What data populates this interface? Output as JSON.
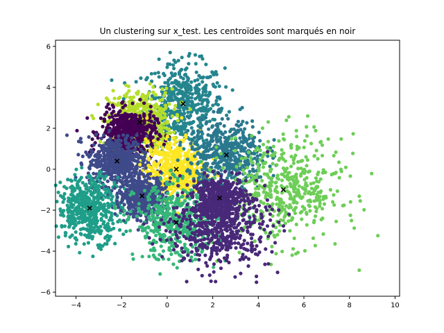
{
  "chart_data": {
    "type": "scatter",
    "title": "Un clustering sur x_test. Les centroïdes sont marqués en noir",
    "xlabel": "",
    "ylabel": "",
    "xlim": [
      -4.9,
      10.2
    ],
    "ylim": [
      -6.2,
      6.3
    ],
    "xticks": [
      -4,
      -2,
      0,
      2,
      4,
      6,
      8,
      10
    ],
    "yticks": [
      -6,
      -4,
      -2,
      0,
      2,
      4,
      6
    ],
    "grid": false,
    "centroid_color": "#000000",
    "clusters": [
      {
        "cx": 0.7,
        "cy": 3.2,
        "sx": 0.9,
        "sy": 1.0,
        "color": "#25858e"
      },
      {
        "cx": -1.2,
        "cy": 2.3,
        "sx": 0.7,
        "sy": 0.8,
        "color": "#b5de2b"
      },
      {
        "cx": -1.7,
        "cy": 1.8,
        "sx": 0.6,
        "sy": 0.55,
        "color": "#440154"
      },
      {
        "cx": -2.2,
        "cy": 0.4,
        "sx": 0.65,
        "sy": 0.6,
        "color": "#3e4a89"
      },
      {
        "cx": 0.4,
        "cy": 0.0,
        "sx": 0.65,
        "sy": 0.7,
        "color": "#fde725"
      },
      {
        "cx": 2.6,
        "cy": 0.7,
        "sx": 0.85,
        "sy": 0.85,
        "color": "#2a788e"
      },
      {
        "cx": 5.1,
        "cy": -1.0,
        "sx": 1.3,
        "sy": 1.3,
        "color": "#6ece58"
      },
      {
        "cx": -3.4,
        "cy": -1.9,
        "sx": 0.7,
        "sy": 0.8,
        "color": "#1f9e89"
      },
      {
        "cx": -1.1,
        "cy": -1.3,
        "sx": 0.5,
        "sy": 0.5,
        "color": "#3e4a89"
      },
      {
        "cx": 0.4,
        "cy": -2.6,
        "sx": 0.9,
        "sy": 0.9,
        "color": "#35b779"
      },
      {
        "cx": 2.3,
        "cy": -1.4,
        "sx": 0.6,
        "sy": 0.5,
        "color": "#482878"
      },
      {
        "cx": 2.3,
        "cy": -3.0,
        "sx": 1.1,
        "sy": 0.9,
        "color": "#482878"
      }
    ],
    "centroids": [
      {
        "x": 0.7,
        "y": 3.2
      },
      {
        "x": -1.2,
        "y": 2.3
      },
      {
        "x": -2.2,
        "y": 0.4
      },
      {
        "x": 0.4,
        "y": 0.0
      },
      {
        "x": 2.6,
        "y": 0.7
      },
      {
        "x": 5.1,
        "y": -1.0
      },
      {
        "x": -3.4,
        "y": -1.9
      },
      {
        "x": -1.1,
        "y": -1.3
      },
      {
        "x": 0.4,
        "y": -2.6
      },
      {
        "x": 2.3,
        "y": -1.4
      }
    ]
  }
}
